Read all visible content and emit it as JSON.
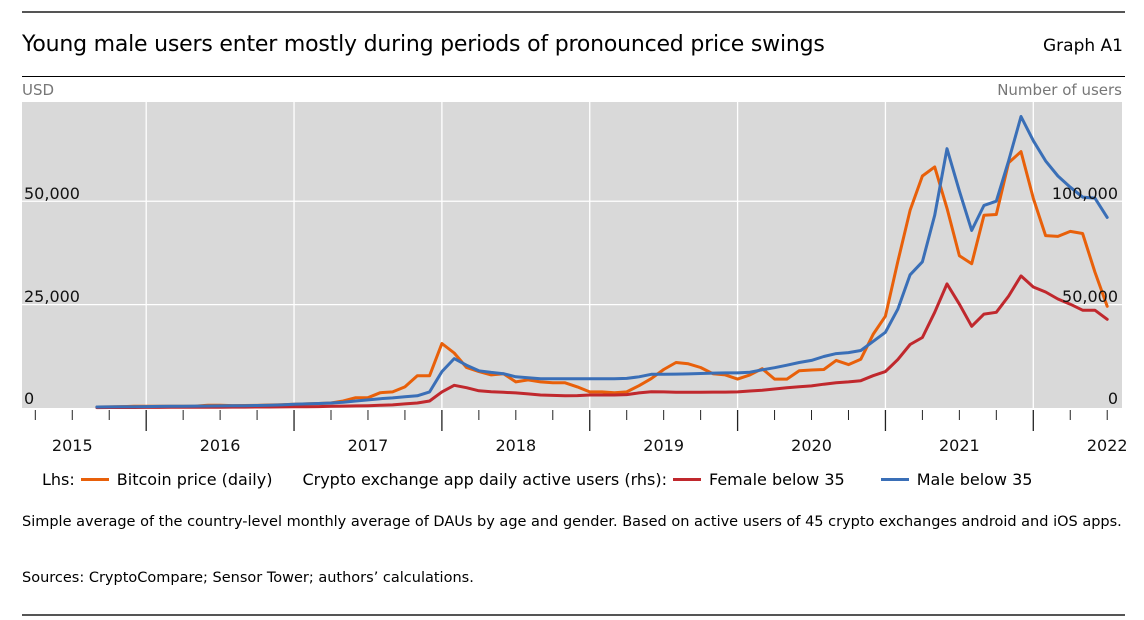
{
  "header": {
    "title": "Young male users enter mostly during periods of pronounced price swings",
    "graph_id": "Graph A1",
    "left_unit": "USD",
    "right_unit": "Number of users"
  },
  "legend": {
    "lhs_prefix": "Lhs:",
    "rhs_prefix": "Crypto exchange app daily active users (rhs):",
    "items": [
      {
        "label": "Bitcoin price (daily)",
        "color": "#e8600a"
      },
      {
        "label": "Female below 35",
        "color": "#c0282d"
      },
      {
        "label": "Male below 35",
        "color": "#3a6fb7"
      }
    ]
  },
  "note": "Simple average of the country-level monthly average of DAUs by age and gender. Based on active users of 45 crypto exchanges android and iOS apps.",
  "sources": "Sources: CryptoCompare; Sensor Tower; authors’ calculations.",
  "chart_data": {
    "type": "line",
    "title": "Young male users enter mostly during periods of pronounced price swings",
    "xlabel": "",
    "ylabel": "USD",
    "ylabel_right": "Number of users",
    "grid": true,
    "legend_position": "bottom",
    "x_range": [
      2015.16,
      2022.6
    ],
    "ylim": [
      0,
      74000
    ],
    "ylim_right": [
      0,
      148000
    ],
    "x_tick_labels": [
      "2015",
      "2016",
      "2017",
      "2018",
      "2019",
      "2020",
      "2021",
      "2022"
    ],
    "y_ticks_left": [
      0,
      25000,
      50000
    ],
    "y_tick_labels_left": [
      "0",
      "25,000",
      "50,000"
    ],
    "y_ticks_right": [
      0,
      50000,
      100000
    ],
    "y_tick_labels_right": [
      "0",
      "50,000",
      "100,000"
    ],
    "x": [
      "2015-09",
      "2015-10",
      "2015-11",
      "2015-12",
      "2016-01",
      "2016-02",
      "2016-03",
      "2016-04",
      "2016-05",
      "2016-06",
      "2016-07",
      "2016-08",
      "2016-09",
      "2016-10",
      "2016-11",
      "2016-12",
      "2017-01",
      "2017-02",
      "2017-03",
      "2017-04",
      "2017-05",
      "2017-06",
      "2017-07",
      "2017-08",
      "2017-09",
      "2017-10",
      "2017-11",
      "2017-12",
      "2018-01",
      "2018-02",
      "2018-03",
      "2018-04",
      "2018-05",
      "2018-06",
      "2018-07",
      "2018-08",
      "2018-09",
      "2018-10",
      "2018-11",
      "2018-12",
      "2019-01",
      "2019-02",
      "2019-03",
      "2019-04",
      "2019-05",
      "2019-06",
      "2019-07",
      "2019-08",
      "2019-09",
      "2019-10",
      "2019-11",
      "2019-12",
      "2020-01",
      "2020-02",
      "2020-03",
      "2020-04",
      "2020-05",
      "2020-06",
      "2020-07",
      "2020-08",
      "2020-09",
      "2020-10",
      "2020-11",
      "2020-12",
      "2021-01",
      "2021-02",
      "2021-03",
      "2021-04",
      "2021-05",
      "2021-06",
      "2021-07",
      "2021-08",
      "2021-09",
      "2021-10",
      "2021-11",
      "2021-12",
      "2022-01",
      "2022-02",
      "2022-03",
      "2022-04",
      "2022-05",
      "2022-06",
      "2022-07"
    ],
    "series": [
      {
        "name": "Bitcoin price (daily)",
        "axis": "left",
        "color": "#e8600a",
        "values": [
          235,
          270,
          350,
          420,
          420,
          400,
          415,
          430,
          460,
          650,
          670,
          580,
          605,
          640,
          720,
          800,
          900,
          1000,
          1100,
          1200,
          1700,
          2500,
          2500,
          3700,
          3900,
          5100,
          7800,
          7800,
          15600,
          13300,
          9800,
          8800,
          8000,
          8300,
          6300,
          6800,
          6300,
          6100,
          6100,
          5100,
          3900,
          3900,
          3700,
          3900,
          5400,
          7100,
          9300,
          11000,
          10700,
          9800,
          8300,
          8000,
          7000,
          8000,
          9500,
          7000,
          7000,
          9000,
          9200,
          9300,
          11500,
          10500,
          11800,
          17800,
          22200,
          35400,
          47800,
          56100,
          58300,
          48300,
          36800,
          34900,
          46600,
          46800,
          59300,
          62000,
          50700,
          41700,
          41500,
          42700,
          42200,
          32900,
          24600
        ]
      },
      {
        "name": "Female below 35",
        "axis": "right",
        "color": "#c0282d",
        "values": [
          200,
          220,
          240,
          260,
          280,
          300,
          320,
          340,
          360,
          380,
          400,
          420,
          440,
          460,
          500,
          540,
          600,
          650,
          700,
          800,
          900,
          1000,
          1100,
          1300,
          1500,
          2000,
          2400,
          3400,
          7800,
          11000,
          9800,
          8300,
          7900,
          7600,
          7300,
          6800,
          6300,
          6100,
          5900,
          6000,
          6300,
          6300,
          6300,
          6500,
          7300,
          7900,
          7800,
          7600,
          7600,
          7600,
          7700,
          7700,
          7800,
          8200,
          8600,
          9200,
          9800,
          10300,
          10700,
          11500,
          12200,
          12600,
          13200,
          15600,
          17600,
          23400,
          30700,
          34100,
          46300,
          60000,
          50200,
          39500,
          45400,
          46300,
          54100,
          63900,
          58500,
          56100,
          52700,
          50200,
          47300,
          47300,
          42900
        ]
      },
      {
        "name": "Male below 35",
        "axis": "right",
        "color": "#3a6fb7",
        "values": [
          500,
          550,
          600,
          650,
          700,
          750,
          800,
          850,
          900,
          950,
          1000,
          1050,
          1100,
          1200,
          1300,
          1500,
          1800,
          2000,
          2200,
          2400,
          2800,
          3400,
          3900,
          4500,
          4900,
          5400,
          5900,
          7800,
          17600,
          23900,
          20700,
          18000,
          17200,
          16600,
          15100,
          14600,
          14100,
          14100,
          14100,
          14100,
          14100,
          14100,
          14100,
          14300,
          15100,
          16300,
          16300,
          16400,
          16500,
          16700,
          16900,
          17000,
          17000,
          17300,
          18500,
          19500,
          20700,
          22000,
          23000,
          24900,
          26300,
          26800,
          27800,
          32200,
          36600,
          47800,
          64400,
          70700,
          93200,
          125400,
          104900,
          85900,
          98000,
          100000,
          119500,
          141000,
          129300,
          119500,
          112200,
          106800,
          102000,
          101500,
          92200
        ]
      }
    ]
  }
}
